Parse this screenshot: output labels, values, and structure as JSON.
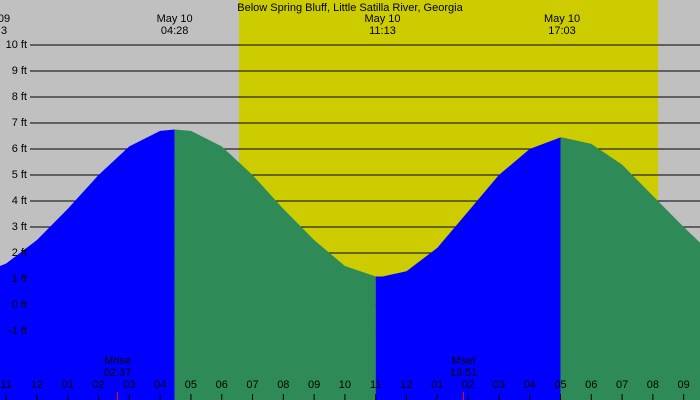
{
  "chart_data": {
    "type": "tide",
    "title": "Below Spring Bluff, Little Satilla River, Georgia",
    "background_color": "#c0c0c0",
    "daylight_color": "#cccc00",
    "rising_color": "#0000ff",
    "falling_color": "#2e8b57",
    "daylight": [
      6.56,
      20.17
    ],
    "x": [
      -1.2,
      -1,
      0,
      1,
      2,
      3,
      4,
      4.47,
      5,
      6,
      7,
      8,
      9,
      10,
      11,
      11.22,
      12,
      13,
      14,
      15,
      16,
      17,
      17.05,
      18,
      19,
      20,
      21,
      21.53
    ],
    "values": [
      1.5,
      1.6,
      2.5,
      3.7,
      5.0,
      6.1,
      6.7,
      6.75,
      6.7,
      6.1,
      5.0,
      3.7,
      2.5,
      1.5,
      1.1,
      1.1,
      1.3,
      2.2,
      3.6,
      5.0,
      6.0,
      6.45,
      6.45,
      6.2,
      5.4,
      4.2,
      3.0,
      2.4
    ],
    "xlim": [
      -1.2,
      21.53
    ],
    "ylim": [
      -3.65,
      11.73
    ],
    "yticks": [
      {
        "value": 10,
        "label": "10 ft"
      },
      {
        "value": 9,
        "label": "9 ft"
      },
      {
        "value": 8,
        "label": "8 ft"
      },
      {
        "value": 7,
        "label": "7 ft"
      },
      {
        "value": 6,
        "label": "6 ft"
      },
      {
        "value": 5,
        "label": "5 ft"
      },
      {
        "value": 4,
        "label": "4 ft"
      },
      {
        "value": 3,
        "label": "3 ft"
      },
      {
        "value": 2,
        "label": "2 ft"
      },
      {
        "value": 1,
        "label": "1 ft"
      },
      {
        "value": 0,
        "label": "0 ft"
      },
      {
        "value": -1,
        "label": "-1 ft"
      }
    ],
    "xticks": [
      {
        "value": -1,
        "label": "11"
      },
      {
        "value": 0,
        "label": "12"
      },
      {
        "value": 1,
        "label": "01"
      },
      {
        "value": 2,
        "label": "02"
      },
      {
        "value": 3,
        "label": "03"
      },
      {
        "value": 4,
        "label": "04"
      },
      {
        "value": 5,
        "label": "05"
      },
      {
        "value": 6,
        "label": "06"
      },
      {
        "value": 7,
        "label": "07"
      },
      {
        "value": 8,
        "label": "08"
      },
      {
        "value": 9,
        "label": "09"
      },
      {
        "value": 10,
        "label": "10"
      },
      {
        "value": 11,
        "label": "11"
      },
      {
        "value": 12,
        "label": "12"
      },
      {
        "value": 13,
        "label": "01"
      },
      {
        "value": 14,
        "label": "02"
      },
      {
        "value": 15,
        "label": "03"
      },
      {
        "value": 16,
        "label": "04"
      },
      {
        "value": 17,
        "label": "05"
      },
      {
        "value": 18,
        "label": "06"
      },
      {
        "value": 19,
        "label": "07"
      },
      {
        "value": 20,
        "label": "08"
      },
      {
        "value": 21,
        "label": "09"
      }
    ],
    "tide_events": [
      {
        "x": -1.07,
        "date": "09",
        "time": "3"
      },
      {
        "x": 4.47,
        "date": "May 10",
        "time": "04:28"
      },
      {
        "x": 11.22,
        "date": "May 10",
        "time": "11:13"
      },
      {
        "x": 17.05,
        "date": "May 10",
        "time": "17:03"
      }
    ],
    "moon_events": [
      {
        "x": 2.617,
        "label": "Mrise",
        "time": "02:37"
      },
      {
        "x": 13.85,
        "label": "Mset",
        "time": "13:51"
      }
    ]
  }
}
